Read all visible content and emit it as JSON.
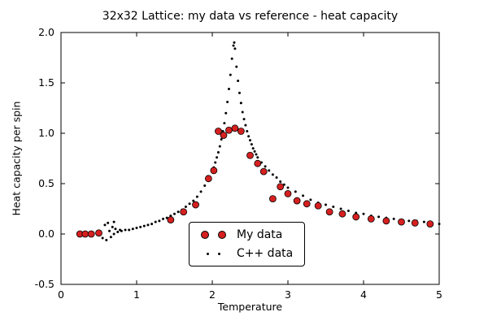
{
  "figure": {
    "title": "32x32 Lattice: my data vs reference - heat capacity",
    "xlabel": "Temperature",
    "ylabel": "Heat capacity per spin"
  },
  "chart_data": {
    "type": "scatter",
    "title": "32x32 Lattice: my data vs reference - heat capacity",
    "xlabel": "Temperature",
    "ylabel": "Heat capacity per spin",
    "xlim": [
      0,
      5
    ],
    "ylim": [
      -0.5,
      2.0
    ],
    "x_ticks": [
      0,
      1,
      2,
      3,
      4,
      5
    ],
    "x_tick_labels": [
      "0",
      "1",
      "2",
      "3",
      "4",
      "5"
    ],
    "y_ticks": [
      -0.5,
      0.0,
      0.5,
      1.0,
      1.5,
      2.0
    ],
    "y_tick_labels": [
      "-0.5",
      "0.0",
      "0.5",
      "1.0",
      "1.5",
      "2.0"
    ],
    "grid": false,
    "legend_position": "lower center (inside axes)",
    "colors": {
      "my_data": "#d62020",
      "cpp_data": "#000000",
      "marker_edge": "#000000",
      "axes": "#000000"
    },
    "series": [
      {
        "name": "My data",
        "marker": "large-circle",
        "color": "#d62020",
        "points": [
          [
            0.25,
            0.0
          ],
          [
            0.32,
            0.0
          ],
          [
            0.4,
            0.0
          ],
          [
            0.5,
            0.01
          ],
          [
            1.45,
            0.14
          ],
          [
            1.62,
            0.22
          ],
          [
            1.78,
            0.29
          ],
          [
            1.95,
            0.55
          ],
          [
            2.02,
            0.63
          ],
          [
            2.08,
            1.02
          ],
          [
            2.15,
            0.98
          ],
          [
            2.22,
            1.03
          ],
          [
            2.3,
            1.05
          ],
          [
            2.38,
            1.02
          ],
          [
            2.5,
            0.78
          ],
          [
            2.6,
            0.7
          ],
          [
            2.68,
            0.62
          ],
          [
            2.8,
            0.35
          ],
          [
            2.9,
            0.47
          ],
          [
            3.0,
            0.4
          ],
          [
            3.12,
            0.33
          ],
          [
            3.25,
            0.3
          ],
          [
            3.4,
            0.28
          ],
          [
            3.55,
            0.22
          ],
          [
            3.72,
            0.2
          ],
          [
            3.9,
            0.17
          ],
          [
            4.1,
            0.15
          ],
          [
            4.3,
            0.13
          ],
          [
            4.5,
            0.12
          ],
          [
            4.68,
            0.11
          ],
          [
            4.88,
            0.1
          ]
        ]
      },
      {
        "name": "C++ data",
        "marker": "small-point",
        "color": "#000000",
        "points": [
          [
            0.5,
            0.01
          ],
          [
            0.55,
            -0.04
          ],
          [
            0.58,
            0.09
          ],
          [
            0.6,
            -0.06
          ],
          [
            0.62,
            0.11
          ],
          [
            0.64,
            0.03
          ],
          [
            0.66,
            -0.03
          ],
          [
            0.68,
            0.07
          ],
          [
            0.7,
            0.12
          ],
          [
            0.7,
            0.0
          ],
          [
            0.72,
            0.05
          ],
          [
            0.75,
            0.02
          ],
          [
            0.78,
            0.04
          ],
          [
            0.8,
            0.03
          ],
          [
            0.85,
            0.04
          ],
          [
            0.9,
            0.04
          ],
          [
            0.95,
            0.05
          ],
          [
            1.0,
            0.06
          ],
          [
            1.05,
            0.07
          ],
          [
            1.1,
            0.08
          ],
          [
            1.15,
            0.09
          ],
          [
            1.2,
            0.1
          ],
          [
            1.25,
            0.12
          ],
          [
            1.3,
            0.13
          ],
          [
            1.35,
            0.15
          ],
          [
            1.4,
            0.16
          ],
          [
            1.45,
            0.18
          ],
          [
            1.5,
            0.2
          ],
          [
            1.55,
            0.22
          ],
          [
            1.6,
            0.24
          ],
          [
            1.65,
            0.27
          ],
          [
            1.7,
            0.3
          ],
          [
            1.75,
            0.33
          ],
          [
            1.8,
            0.37
          ],
          [
            1.85,
            0.42
          ],
          [
            1.9,
            0.48
          ],
          [
            1.95,
            0.55
          ],
          [
            2.0,
            0.62
          ],
          [
            2.02,
            0.66
          ],
          [
            2.04,
            0.71
          ],
          [
            2.06,
            0.76
          ],
          [
            2.08,
            0.81
          ],
          [
            2.1,
            0.87
          ],
          [
            2.12,
            0.94
          ],
          [
            2.14,
            1.02
          ],
          [
            2.16,
            1.1
          ],
          [
            2.18,
            1.2
          ],
          [
            2.2,
            1.31
          ],
          [
            2.22,
            1.44
          ],
          [
            2.24,
            1.58
          ],
          [
            2.26,
            1.74
          ],
          [
            2.28,
            1.87
          ],
          [
            2.29,
            1.9
          ],
          [
            2.3,
            1.84
          ],
          [
            2.32,
            1.66
          ],
          [
            2.34,
            1.52
          ],
          [
            2.36,
            1.4
          ],
          [
            2.38,
            1.3
          ],
          [
            2.4,
            1.21
          ],
          [
            2.42,
            1.14
          ],
          [
            2.44,
            1.08
          ],
          [
            2.46,
            1.02
          ],
          [
            2.48,
            0.97
          ],
          [
            2.5,
            0.93
          ],
          [
            2.52,
            0.89
          ],
          [
            2.54,
            0.85
          ],
          [
            2.56,
            0.82
          ],
          [
            2.58,
            0.79
          ],
          [
            2.6,
            0.76
          ],
          [
            2.65,
            0.71
          ],
          [
            2.7,
            0.67
          ],
          [
            2.75,
            0.63
          ],
          [
            2.8,
            0.59
          ],
          [
            2.85,
            0.56
          ],
          [
            2.9,
            0.52
          ],
          [
            2.95,
            0.49
          ],
          [
            3.0,
            0.46
          ],
          [
            3.1,
            0.42
          ],
          [
            3.2,
            0.38
          ],
          [
            3.3,
            0.34
          ],
          [
            3.4,
            0.31
          ],
          [
            3.5,
            0.29
          ],
          [
            3.6,
            0.27
          ],
          [
            3.7,
            0.25
          ],
          [
            3.8,
            0.23
          ],
          [
            3.9,
            0.21
          ],
          [
            4.0,
            0.2
          ],
          [
            4.1,
            0.18
          ],
          [
            4.2,
            0.17
          ],
          [
            4.3,
            0.16
          ],
          [
            4.4,
            0.15
          ],
          [
            4.5,
            0.14
          ],
          [
            4.6,
            0.13
          ],
          [
            4.7,
            0.13
          ],
          [
            4.8,
            0.12
          ],
          [
            4.9,
            0.11
          ],
          [
            5.0,
            0.1
          ]
        ]
      }
    ]
  }
}
